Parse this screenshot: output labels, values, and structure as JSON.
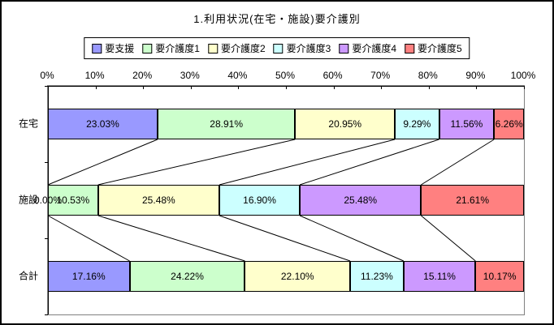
{
  "chart_data": {
    "type": "bar",
    "orientation": "horizontal_stacked",
    "title": "1.利用状況(在宅・施設)要介護別",
    "categories": [
      "在宅",
      "施設",
      "合計"
    ],
    "series": [
      {
        "name": "要支援",
        "color": "#9999FF",
        "values": [
          23.03,
          0.0,
          17.16
        ]
      },
      {
        "name": "要介護度1",
        "color": "#CCFFCC",
        "values": [
          28.91,
          10.53,
          24.22
        ]
      },
      {
        "name": "要介護度2",
        "color": "#FFFFCC",
        "values": [
          20.95,
          25.48,
          22.1
        ]
      },
      {
        "name": "要介護度3",
        "color": "#CCFFFF",
        "values": [
          9.29,
          16.9,
          11.23
        ]
      },
      {
        "name": "要介護度4",
        "color": "#CC99FF",
        "values": [
          11.56,
          25.48,
          15.11
        ]
      },
      {
        "name": "要介護度5",
        "color": "#FF8080",
        "values": [
          6.26,
          21.61,
          10.17
        ]
      }
    ],
    "data_labels": [
      "23.03%",
      "28.91%",
      "20.95%",
      "9.29%",
      "11.56%",
      "6.26%",
      "0.00%",
      "10.53%",
      "25.48%",
      "16.90%",
      "25.48%",
      "21.61%",
      "17.16%",
      "24.22%",
      "22.10%",
      "11.23%",
      "15.11%",
      "10.17%"
    ],
    "x_axis": {
      "min": 0,
      "max": 100,
      "tick_step": 10,
      "tick_labels": [
        "0%",
        "10%",
        "20%",
        "30%",
        "40%",
        "50%",
        "60%",
        "70%",
        "80%",
        "90%",
        "100%"
      ]
    },
    "legend": {
      "position": "top-boxed",
      "entries": [
        "要支援",
        "要介護度1",
        "要介護度2",
        "要介護度3",
        "要介護度4",
        "要介護度5"
      ]
    },
    "grid": false,
    "series_lines": true,
    "colors": {
      "axis": "#000000",
      "plot_border": "#808080",
      "background": "#FFFFFF",
      "segment_border": "#000000"
    }
  }
}
